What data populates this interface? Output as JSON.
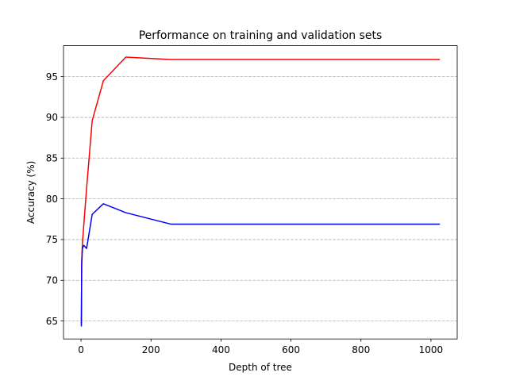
{
  "chart_data": {
    "type": "line",
    "title": "Performance on training and validation sets",
    "xlabel": "Depth of tree",
    "ylabel": "Accuracy (%)",
    "xlim": [
      -50,
      1075
    ],
    "ylim": [
      62.8,
      98.8
    ],
    "xticks": [
      0,
      200,
      400,
      600,
      800,
      1000
    ],
    "xtick_labels": [
      "0",
      "200",
      "400",
      "600",
      "800",
      "1000"
    ],
    "yticks": [
      65,
      70,
      75,
      80,
      85,
      90,
      95
    ],
    "ytick_labels": [
      "65",
      "70",
      "75",
      "80",
      "85",
      "90",
      "95"
    ],
    "grid": "horizontal-dashed",
    "series": [
      {
        "color": "#ff0000",
        "x": [
          1,
          2,
          4,
          8,
          16,
          32,
          64,
          128,
          256,
          512,
          1024
        ],
        "y": [
          64.6,
          72.3,
          74.5,
          76.8,
          81.3,
          89.6,
          94.5,
          97.4,
          97.1,
          97.1,
          97.1
        ]
      },
      {
        "color": "#0000ff",
        "x": [
          1,
          2,
          4,
          8,
          16,
          32,
          64,
          128,
          256,
          512,
          1024
        ],
        "y": [
          64.4,
          71.9,
          73.9,
          74.3,
          73.9,
          78.1,
          79.4,
          78.3,
          76.9,
          76.9,
          76.9
        ]
      }
    ]
  }
}
